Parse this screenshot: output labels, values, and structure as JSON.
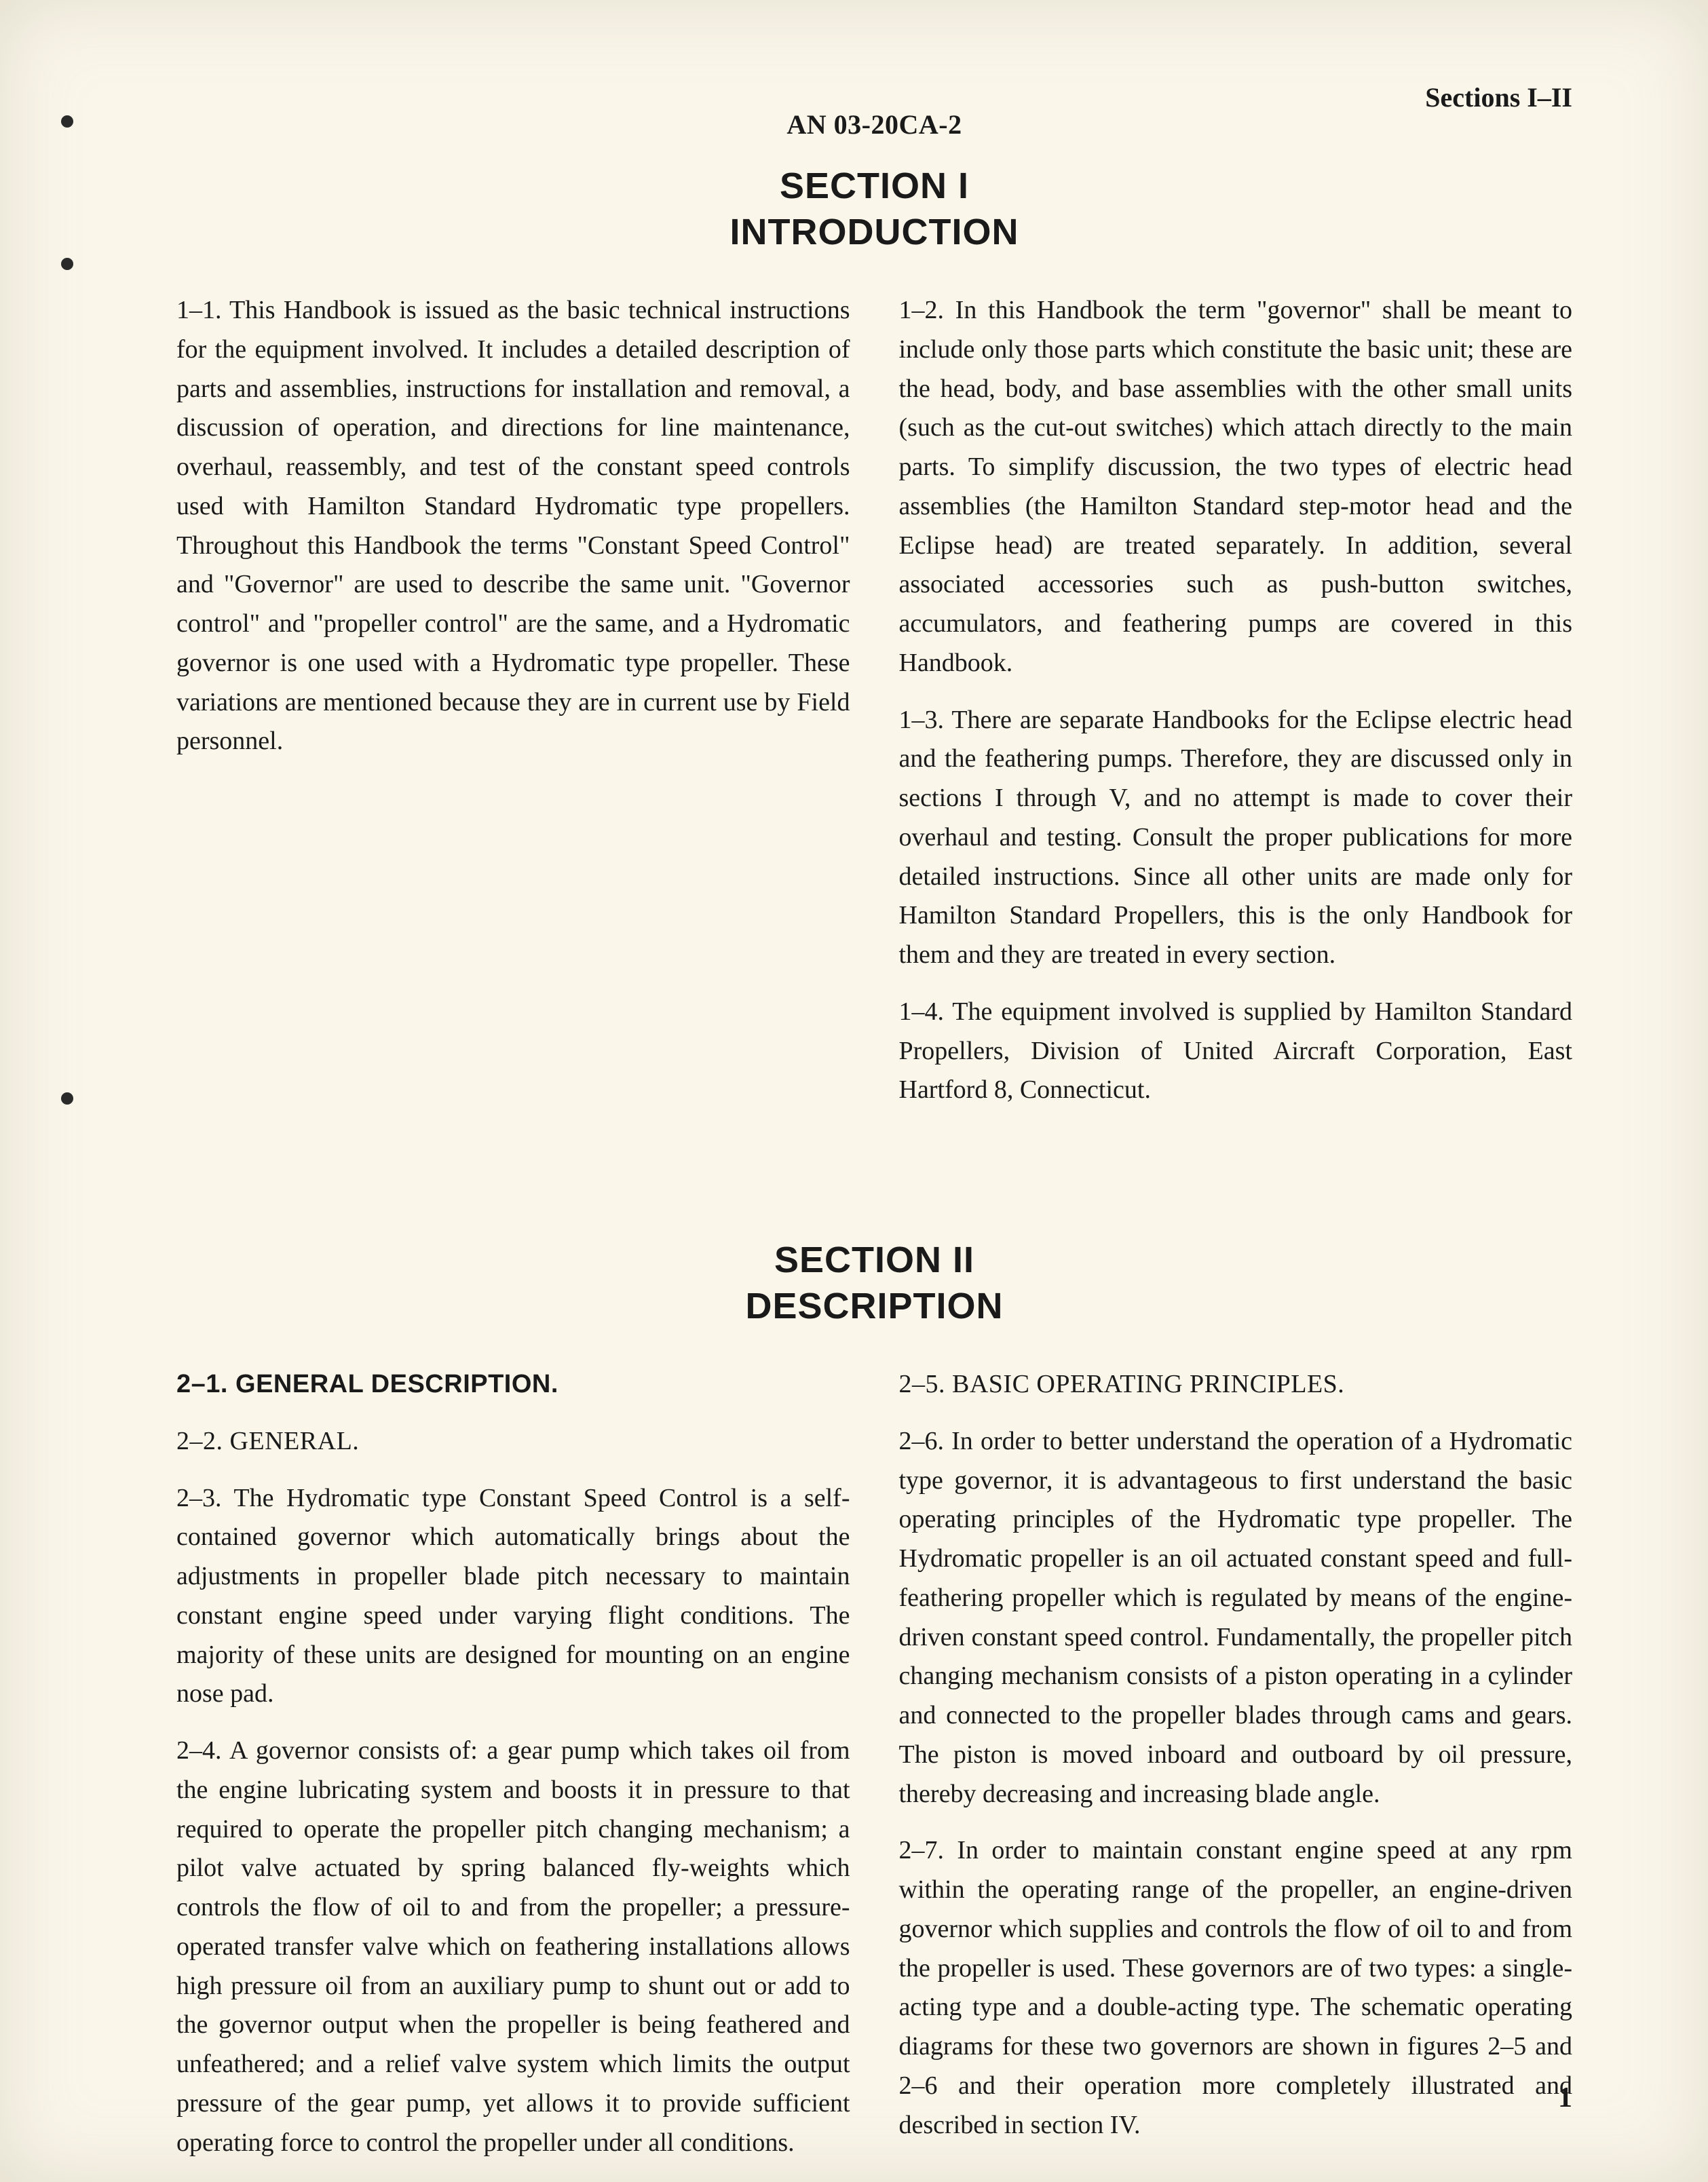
{
  "document_number": "AN 03-20CA-2",
  "running_head_right": "Sections I–II",
  "page_number": "1",
  "page_bg_color": "#faf6ea",
  "text_color": "#1a1a1a",
  "body_font_size_pt": 11,
  "heading_font_size_pt": 18,
  "section1": {
    "title_line1": "SECTION I",
    "title_line2": "INTRODUCTION",
    "paragraphs": {
      "p1_1": "1–1. This Handbook is issued as the basic technical instructions for the equipment involved. It includes a detailed description of parts and assemblies, instructions for installation and removal, a discussion of operation, and directions for line maintenance, overhaul, reassembly, and test of the constant speed controls used with Hamilton Standard Hydromatic type propellers. Throughout this Handbook the terms \"Constant Speed Control\" and \"Governor\" are used to describe the same unit. \"Governor control\" and \"propeller control\" are the same, and a Hydromatic governor is one used with a Hydromatic type propeller. These variations are mentioned because they are in current use by Field personnel.",
      "p1_2": "1–2. In this Handbook the term \"governor\" shall be meant to include only those parts which constitute the basic unit; these are the head, body, and base assemblies with the other small units (such as the cut-out switches) which attach directly to the main parts. To simplify discussion, the two types of electric head assemblies (the Hamilton Standard step-motor head and the Eclipse head) are treated separately. In addition, several associated accessories such as push-button switches, accumulators, and feathering pumps are covered in this Handbook.",
      "p1_3": "1–3. There are separate Handbooks for the Eclipse electric head and the feathering pumps. Therefore, they are discussed only in sections I through V, and no attempt is made to cover their overhaul and testing. Consult the proper publications for more detailed instructions. Since all other units are made only for Hamilton Standard Propellers, this is the only Handbook for them and they are treated in every section.",
      "p1_4": "1–4. The equipment involved is supplied by Hamilton Standard Propellers, Division of United Aircraft Corporation, East Hartford 8, Connecticut."
    }
  },
  "section2": {
    "title_line1": "SECTION II",
    "title_line2": "DESCRIPTION",
    "headings": {
      "h2_1": "2–1. GENERAL DESCRIPTION.",
      "h2_2": "2–2. GENERAL.",
      "h2_5": "2–5. BASIC OPERATING PRINCIPLES."
    },
    "paragraphs": {
      "p2_3": "2–3. The Hydromatic type Constant Speed Control is a self-contained governor which automatically brings about the adjustments in propeller blade pitch necessary to maintain constant engine speed under varying flight conditions. The majority of these units are designed for mounting on an engine nose pad.",
      "p2_4": "2–4. A governor consists of: a gear pump which takes oil from the engine lubricating system and boosts it in pressure to that required to operate the propeller pitch changing mechanism; a pilot valve actuated by spring balanced fly-weights which controls the flow of oil to and from the propeller; a pressure-operated transfer valve which on feathering installations allows high pressure oil from an auxiliary pump to shunt out or add to the governor output when the propeller is being feathered and unfeathered; and a relief valve system which limits the output pressure of the gear pump, yet allows it to provide sufficient operating force to control the propeller under all conditions.",
      "p2_6": "2–6. In order to better understand the operation of a Hydromatic type governor, it is advantageous to first understand the basic operating principles of the Hydromatic type propeller. The Hydromatic propeller is an oil actuated constant speed and full-feathering propeller which is regulated by means of the engine-driven constant speed control. Fundamentally, the propeller pitch changing mechanism consists of a piston operating in a cylinder and connected to the propeller blades through cams and gears. The piston is moved inboard and outboard by oil pressure, thereby decreasing and increasing blade angle.",
      "p2_7": "2–7. In order to maintain constant engine speed at any rpm within the operating range of the propeller, an engine-driven governor which supplies and controls the flow of oil to and from the propeller is used. These governors are of two types: a single-acting type and a double-acting type. The schematic operating diagrams for these two governors are shown in figures 2–5 and 2–6 and their operation more completely illustrated and described in section IV."
    }
  }
}
